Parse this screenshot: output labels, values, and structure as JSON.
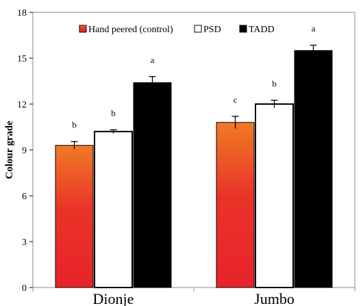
{
  "chart_data": {
    "type": "bar",
    "title": "",
    "xlabel": "",
    "ylabel": "Colour grade",
    "ylim": [
      0,
      18
    ],
    "yticks": [
      "0",
      "3",
      "6",
      "9",
      "12",
      "15",
      "18"
    ],
    "grid": false,
    "legend_position": "top",
    "categories": [
      "Dionje",
      "Jumbo"
    ],
    "series": [
      {
        "name": "Hand peered (control)",
        "color": "#e8232a",
        "color_top": "#f07a26",
        "values": [
          9.3,
          10.8
        ],
        "errors": [
          0.25,
          0.4
        ],
        "letters": [
          "b",
          "c"
        ]
      },
      {
        "name": "PSD",
        "color": "#ffffff",
        "values": [
          10.2,
          12.0
        ],
        "errors": [
          0.12,
          0.25
        ],
        "letters": [
          "b",
          "b"
        ]
      },
      {
        "name": "TADD",
        "color": "#000000",
        "values": [
          13.4,
          15.5
        ],
        "errors": [
          0.4,
          0.35
        ],
        "letters": [
          "a",
          "a"
        ]
      }
    ]
  }
}
